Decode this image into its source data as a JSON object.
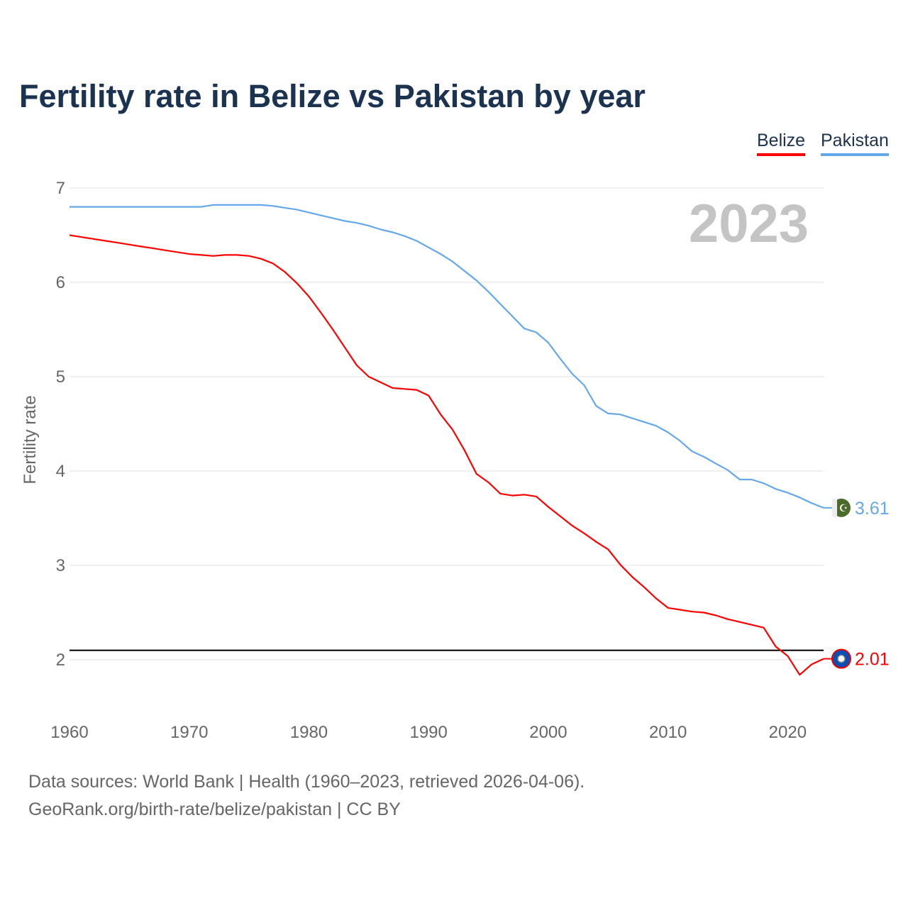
{
  "title": "Fertility rate in Belize vs Pakistan by year",
  "year_label": "2023",
  "source_line1": "Data sources: World Bank | Health (1960–2023, retrieved 2026-04-06).",
  "source_line2": "GeoRank.org/birth-rate/belize/pakistan | CC BY",
  "chart_data": {
    "type": "line",
    "title": "Fertility rate in Belize vs Pakistan by year",
    "xlabel": "",
    "ylabel": "Fertility rate",
    "xlim": [
      1960,
      2023
    ],
    "ylim": [
      2,
      7
    ],
    "x_ticks": [
      "1960",
      "1970",
      "1980",
      "1990",
      "2000",
      "2010",
      "2020"
    ],
    "y_ticks": [
      "2",
      "3",
      "4",
      "5",
      "6",
      "7"
    ],
    "grid": true,
    "legend_position": "top-right",
    "reference_line": 2.1,
    "series": [
      {
        "name": "Belize",
        "color": "#ff0000",
        "end_label": "2.01",
        "start_year": 1960,
        "values": [
          6.5,
          6.48,
          6.46,
          6.44,
          6.42,
          6.4,
          6.38,
          6.36,
          6.34,
          6.32,
          6.3,
          6.29,
          6.28,
          6.29,
          6.29,
          6.28,
          6.25,
          6.2,
          6.11,
          5.99,
          5.85,
          5.68,
          5.5,
          5.31,
          5.12,
          5.0,
          4.94,
          4.88,
          4.87,
          4.86,
          4.8,
          4.6,
          4.44,
          4.22,
          3.97,
          3.88,
          3.76,
          3.74,
          3.75,
          3.73,
          3.62,
          3.52,
          3.42,
          3.34,
          3.25,
          3.17,
          3.01,
          2.88,
          2.77,
          2.65,
          2.55,
          2.53,
          2.51,
          2.5,
          2.47,
          2.43,
          2.4,
          2.37,
          2.34,
          2.14,
          2.04,
          1.84,
          1.95,
          2.01
        ]
      },
      {
        "name": "Pakistan",
        "color": "#64a8ea",
        "end_label": "3.61",
        "start_year": 1960,
        "values": [
          6.8,
          6.8,
          6.8,
          6.8,
          6.8,
          6.8,
          6.8,
          6.8,
          6.8,
          6.8,
          6.8,
          6.8,
          6.82,
          6.82,
          6.82,
          6.82,
          6.82,
          6.81,
          6.79,
          6.77,
          6.74,
          6.71,
          6.68,
          6.65,
          6.63,
          6.6,
          6.56,
          6.53,
          6.49,
          6.44,
          6.37,
          6.3,
          6.22,
          6.12,
          6.02,
          5.9,
          5.77,
          5.64,
          5.51,
          5.47,
          5.36,
          5.19,
          5.03,
          4.91,
          4.69,
          4.61,
          4.6,
          4.56,
          4.52,
          4.48,
          4.41,
          4.32,
          4.21,
          4.15,
          4.08,
          4.01,
          3.91,
          3.91,
          3.87,
          3.81,
          3.77,
          3.72,
          3.66,
          3.61
        ]
      }
    ]
  }
}
